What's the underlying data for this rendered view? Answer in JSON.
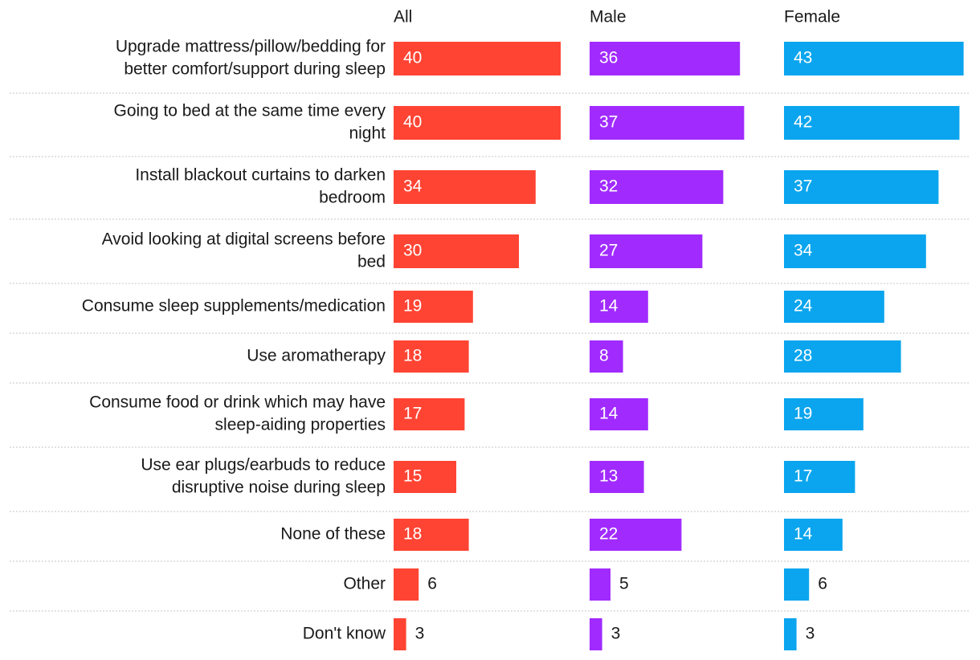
{
  "chart_data": {
    "type": "bar",
    "orientation": "horizontal",
    "title": "",
    "categories": [
      [
        "Upgrade mattress/pillow/bedding for",
        "better comfort/support during sleep"
      ],
      [
        "Going to bed at the same time every",
        "night"
      ],
      [
        "Install blackout curtains to darken",
        "bedroom"
      ],
      [
        "Avoid looking at digital screens before",
        "bed"
      ],
      [
        "Consume sleep supplements/medication"
      ],
      [
        "Use aromatherapy"
      ],
      [
        "Consume food or drink which may have",
        "sleep-aiding properties"
      ],
      [
        "Use ear plugs/earbuds to reduce",
        "disruptive noise during sleep"
      ],
      [
        "None of these"
      ],
      [
        "Other"
      ],
      [
        "Don't know"
      ]
    ],
    "series": [
      {
        "name": "All",
        "color": "#ff4433",
        "values": [
          40,
          40,
          34,
          30,
          19,
          18,
          17,
          15,
          18,
          6,
          3
        ]
      },
      {
        "name": "Male",
        "color": "#a12bff",
        "values": [
          36,
          37,
          32,
          27,
          14,
          8,
          14,
          13,
          22,
          5,
          3
        ]
      },
      {
        "name": "Female",
        "color": "#0aa5ee",
        "values": [
          43,
          42,
          37,
          34,
          24,
          28,
          19,
          17,
          14,
          6,
          3
        ]
      }
    ],
    "xlim": [
      0,
      43
    ],
    "grid": false,
    "legend": "column headers"
  }
}
